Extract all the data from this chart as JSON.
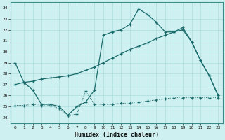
{
  "xlabel": "Humidex (Indice chaleur)",
  "bg_color": "#cff0f0",
  "line_color": "#1a6b6b",
  "grid_color": "#aadddd",
  "xlim": [
    -0.5,
    23.5
  ],
  "ylim": [
    23.5,
    34.5
  ],
  "yticks": [
    24,
    25,
    26,
    27,
    28,
    29,
    30,
    31,
    32,
    33,
    34
  ],
  "xticks": [
    0,
    1,
    2,
    3,
    4,
    5,
    6,
    7,
    8,
    9,
    10,
    11,
    12,
    13,
    14,
    15,
    16,
    17,
    18,
    19,
    20,
    21,
    22,
    23
  ],
  "line1_x": [
    0,
    1,
    2,
    3,
    4,
    5,
    6,
    7,
    8,
    9,
    10,
    11,
    12,
    13,
    14,
    15,
    16,
    17,
    18,
    19,
    20,
    21,
    22,
    23
  ],
  "line1_y": [
    29.0,
    27.2,
    26.5,
    25.2,
    25.2,
    25.0,
    24.2,
    25.0,
    25.4,
    26.5,
    31.5,
    31.8,
    32.0,
    32.5,
    33.9,
    33.4,
    32.7,
    31.8,
    31.8,
    32.2,
    30.9,
    29.2,
    27.8,
    26.0
  ],
  "line2_x": [
    0,
    1,
    2,
    3,
    4,
    5,
    6,
    7,
    8,
    9,
    10,
    11,
    12,
    13,
    14,
    15,
    16,
    17,
    18,
    19,
    20,
    21,
    22,
    23
  ],
  "line2_y": [
    27.0,
    27.2,
    27.3,
    27.5,
    27.6,
    27.7,
    27.8,
    28.0,
    28.3,
    28.6,
    29.0,
    29.4,
    29.8,
    30.2,
    30.5,
    30.8,
    31.2,
    31.5,
    31.8,
    32.0,
    30.9,
    29.2,
    27.8,
    26.0
  ],
  "line3_x": [
    0,
    1,
    2,
    3,
    4,
    5,
    6,
    7,
    8,
    9,
    10,
    11,
    12,
    13,
    14,
    15,
    16,
    17,
    18,
    19,
    20,
    21,
    22,
    23
  ],
  "line3_y": [
    25.1,
    25.1,
    25.2,
    25.1,
    25.1,
    24.8,
    24.2,
    24.3,
    26.4,
    25.2,
    25.2,
    25.2,
    25.3,
    25.3,
    25.4,
    25.5,
    25.6,
    25.7,
    25.8,
    25.8,
    25.8,
    25.8,
    25.8,
    25.8
  ]
}
